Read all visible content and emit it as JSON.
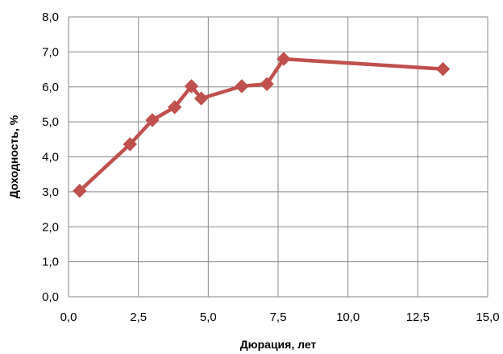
{
  "chart_data": {
    "type": "line",
    "title": "",
    "xlabel": "Дюрация, лет",
    "ylabel": "Доходность, %",
    "xlim": [
      0,
      15
    ],
    "ylim": [
      0,
      8
    ],
    "x_ticks": [
      0,
      2.5,
      5,
      7.5,
      10,
      12.5,
      15
    ],
    "x_tick_labels": [
      "0,0",
      "2,5",
      "5,0",
      "7,5",
      "10,0",
      "12,5",
      "15,0"
    ],
    "y_ticks": [
      0,
      1,
      2,
      3,
      4,
      5,
      6,
      7,
      8
    ],
    "y_tick_labels": [
      "0,0",
      "1,0",
      "2,0",
      "3,0",
      "4,0",
      "5,0",
      "6,0",
      "7,0",
      "8,0"
    ],
    "grid": true,
    "legend": "none",
    "series": [
      {
        "color": "#c0504d",
        "marker": "diamond",
        "x": [
          0.4,
          2.2,
          3.0,
          3.8,
          4.4,
          4.75,
          6.2,
          7.1,
          7.7,
          13.4
        ],
        "y": [
          3.03,
          4.36,
          5.05,
          5.42,
          6.02,
          5.67,
          6.02,
          6.08,
          6.8,
          6.51
        ]
      }
    ]
  }
}
